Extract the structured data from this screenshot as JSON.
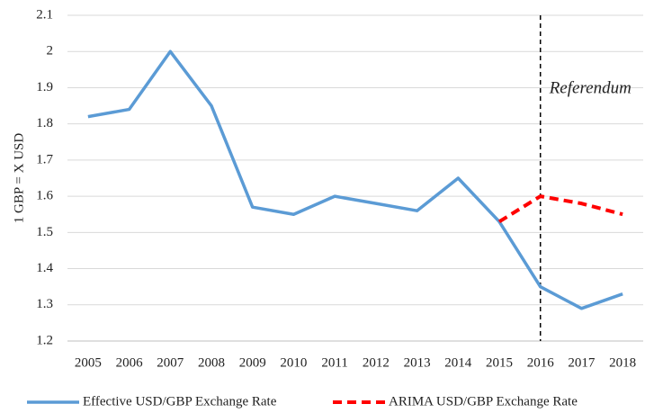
{
  "chart_data": {
    "type": "line",
    "y_label": "1 GBP = X USD",
    "categories": [
      "2005",
      "2006",
      "2007",
      "2008",
      "2009",
      "2010",
      "2011",
      "2012",
      "2013",
      "2014",
      "2015",
      "2016",
      "2017",
      "2018"
    ],
    "series": [
      {
        "name": "Effective USD/GBP Exchange Rate",
        "color": "#5b9bd5",
        "dash": "solid",
        "values": [
          1.82,
          1.84,
          2.0,
          1.85,
          1.57,
          1.55,
          1.6,
          1.58,
          1.56,
          1.65,
          1.53,
          1.35,
          1.29,
          1.33
        ]
      },
      {
        "name": "ARIMA USD/GBP Exchange Rate",
        "color": "#ff0000",
        "dash": "dashed",
        "values": [
          null,
          null,
          null,
          null,
          null,
          null,
          null,
          null,
          null,
          null,
          1.53,
          1.6,
          1.58,
          1.55
        ]
      }
    ],
    "annotation": {
      "text": "Referendum",
      "category": "2016"
    },
    "ylim": [
      1.2,
      2.1
    ],
    "yticks": [
      1.2,
      1.3,
      1.4,
      1.5,
      1.6,
      1.7,
      1.8,
      1.9,
      2,
      2.1
    ],
    "grid": true,
    "legend": "bottom"
  }
}
